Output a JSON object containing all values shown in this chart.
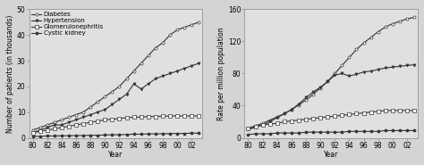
{
  "years": [
    1980,
    1981,
    1982,
    1983,
    1984,
    1985,
    1986,
    1987,
    1988,
    1989,
    1990,
    1991,
    1992,
    1993,
    1994,
    1995,
    1996,
    1997,
    1998,
    1999,
    2000,
    2001,
    2002,
    2003
  ],
  "xtick_years": [
    1980,
    1982,
    1984,
    1986,
    1988,
    1990,
    1992,
    1994,
    1996,
    1998,
    2000,
    2002
  ],
  "xtick_labels": [
    "80",
    "82",
    "84",
    "86",
    "88",
    "90",
    "92",
    "94",
    "96",
    "98",
    "00",
    "02"
  ],
  "left": {
    "diabetes": [
      3,
      4,
      5,
      6,
      7,
      8,
      9,
      10,
      12,
      14,
      16,
      18,
      20,
      23,
      26,
      29,
      32,
      35,
      37,
      40,
      42,
      43,
      44,
      45
    ],
    "hypertension": [
      2,
      3,
      4,
      5,
      5,
      6,
      7,
      8,
      9,
      10,
      11,
      13,
      15,
      17,
      21,
      19,
      21,
      23,
      24,
      25,
      26,
      27,
      28,
      29
    ],
    "glomerulo": [
      2,
      2.5,
      3,
      3.5,
      4,
      4.5,
      5,
      5.5,
      6,
      6.5,
      7,
      7.2,
      7.5,
      7.8,
      8,
      8.1,
      8.2,
      8.3,
      8.4,
      8.5,
      8.5,
      8.5,
      8.5,
      8.5
    ],
    "cystic": [
      0.5,
      0.6,
      0.7,
      0.7,
      0.8,
      0.8,
      0.9,
      0.9,
      1.0,
      1.0,
      1.1,
      1.2,
      1.2,
      1.3,
      1.4,
      1.4,
      1.5,
      1.5,
      1.6,
      1.6,
      1.7,
      1.7,
      1.8,
      1.8
    ],
    "ylabel": "Number of patients (in thousands)",
    "ylim": [
      0,
      50
    ],
    "yticks": [
      0,
      10,
      20,
      30,
      40,
      50
    ]
  },
  "right": {
    "diabetes": [
      12,
      15,
      18,
      22,
      26,
      30,
      35,
      41,
      47,
      54,
      62,
      70,
      80,
      90,
      100,
      110,
      118,
      125,
      132,
      138,
      142,
      145,
      148,
      150
    ],
    "hypertension": [
      10,
      13,
      16,
      20,
      25,
      30,
      35,
      42,
      50,
      57,
      63,
      70,
      78,
      80,
      77,
      79,
      82,
      83,
      85,
      87,
      88,
      89,
      90,
      91
    ],
    "glomerulo": [
      12,
      14,
      16,
      17,
      18,
      20,
      21,
      22,
      23,
      24,
      25,
      26,
      27,
      28,
      29,
      30,
      31,
      32,
      33,
      34,
      34,
      34,
      34,
      34
    ],
    "cystic": [
      4,
      5,
      5,
      5,
      6,
      6,
      6,
      6,
      7,
      7,
      7,
      7,
      7,
      7,
      8,
      8,
      8,
      8,
      8,
      9,
      9,
      9,
      9,
      9
    ],
    "ylabel": "Rate per million population",
    "ylim": [
      0,
      160
    ],
    "yticks": [
      0,
      40,
      80,
      120,
      160
    ]
  },
  "legend": {
    "diabetes_label": "Diabetes",
    "hypertension_label": "Hypertension",
    "glomerulo_label": "Glomerulonephritis",
    "cystic_label": "Cystic kidney"
  },
  "xlabel": "Year",
  "bg_color": "#d4d4d4",
  "plot_bg_color": "#e0e0e0",
  "line_color": "#333333",
  "fontsize": 5.5
}
